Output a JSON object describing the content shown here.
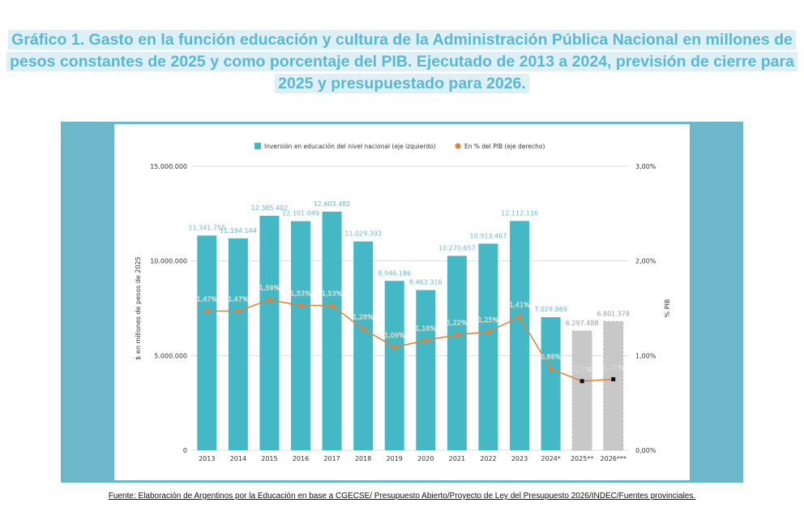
{
  "title": "Gráfico 1. Gasto en la función educación y cultura de la Administración Pública Nacional en millones de pesos constantes de 2025 y como porcentaje del PIB. Ejecutado de 2013 a 2024, previsión de cierre para 2025 y presupuestado para 2026.",
  "source": "Fuente: Elaboración de Argentinos por la Educación en base a CGECSE/ Presupuesto Abierto/Proyecto de Ley del Presupuesto 2026/INDEC/Fuentes provinciales.",
  "chart_data": {
    "type": "bar+line",
    "categories": [
      "2013",
      "2014",
      "2015",
      "2016",
      "2017",
      "2018",
      "2019",
      "2020",
      "2021",
      "2022",
      "2023",
      "2024*",
      "2025**",
      "2026***"
    ],
    "series": [
      {
        "name": "Inversión en educación del nivel nacional (eje izquierdo)",
        "type": "bar",
        "axis": "left",
        "color": "#45b8c6",
        "projected_color": "#c8c8c8",
        "values": [
          11341755,
          11194144,
          12385402,
          12101049,
          12603482,
          11029392,
          8946186,
          8462316,
          10270657,
          10913467,
          12112116,
          7029869,
          6297488,
          6801378
        ],
        "labels": [
          "11.341.755",
          "11.194.144",
          "12.385.402",
          "12.101.049",
          "12.603.482",
          "11.029.392",
          "8.946.186",
          "8.462.316",
          "10.270.657",
          "10.913.467",
          "12.112.116",
          "7.029.869",
          "6.297.488",
          "6.801.378"
        ]
      },
      {
        "name": "En % del PIB (eje derecho)",
        "type": "line",
        "axis": "right",
        "color": "#e67e33",
        "values": [
          1.47,
          1.47,
          1.59,
          1.53,
          1.53,
          1.28,
          1.09,
          1.16,
          1.22,
          1.25,
          1.41,
          0.86,
          0.73,
          0.75
        ],
        "labels": [
          "1,47%",
          "1,47%",
          "1,59%",
          "1,53%",
          "1,53%",
          "1,28%",
          "1,09%",
          "1,16%",
          "1,22%",
          "1,25%",
          "1,41%",
          "0,86%",
          "0,73%",
          "0,75%"
        ]
      }
    ],
    "projected_categories": [
      "2025**",
      "2026***"
    ],
    "ylabel": "$ en millones de pesos de 2025",
    "y2label": "% PIB",
    "ylim": [
      0,
      15000000
    ],
    "y2lim": [
      0,
      3
    ],
    "yticks": [
      "0",
      "5.000.000",
      "10.000.000",
      "15.000.000"
    ],
    "y2ticks": [
      "0,00%",
      "1,00%",
      "2,00%",
      "3,00%"
    ],
    "grid": true,
    "legend": "top"
  }
}
